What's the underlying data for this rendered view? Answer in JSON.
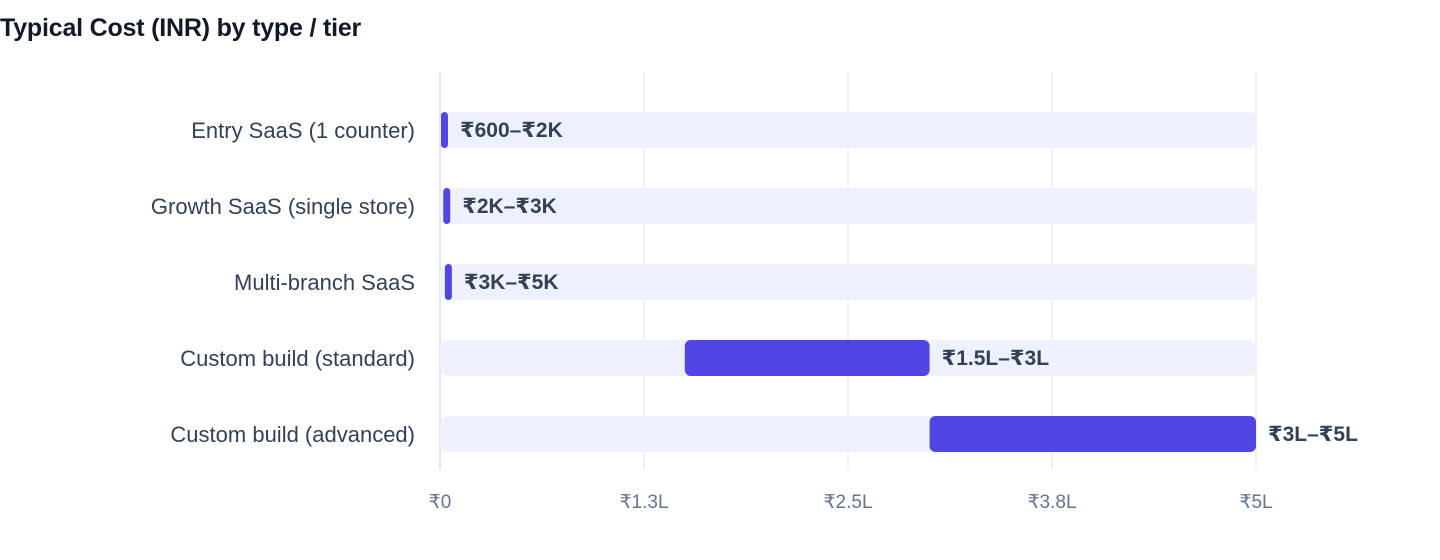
{
  "chart_data": {
    "type": "bar",
    "orientation": "horizontal",
    "title": "Typical Cost (INR) by type / tier",
    "xlabel": "",
    "ylabel": "",
    "xlim": [
      0,
      500000
    ],
    "x_ticks": [
      {
        "value": 0,
        "label": "₹0"
      },
      {
        "value": 125000,
        "label": "₹1.3L"
      },
      {
        "value": 250000,
        "label": "₹2.5L"
      },
      {
        "value": 375000,
        "label": "₹3.8L"
      },
      {
        "value": 500000,
        "label": "₹5L"
      }
    ],
    "grid": true,
    "categories": [
      "Entry SaaS (1 counter)",
      "Growth SaaS (single store)",
      "Multi-branch SaaS",
      "Custom build (standard)",
      "Custom build (advanced)"
    ],
    "ranges": [
      {
        "low": 600,
        "high": 2000,
        "label": "₹600–₹2K"
      },
      {
        "low": 2000,
        "high": 3000,
        "label": "₹2K–₹3K"
      },
      {
        "low": 3000,
        "high": 5000,
        "label": "₹3K–₹5K"
      },
      {
        "low": 150000,
        "high": 300000,
        "label": "₹1.5L–₹3L"
      },
      {
        "low": 300000,
        "high": 500000,
        "label": "₹3L–₹5L"
      }
    ],
    "colors": {
      "bar": "#4f46e5",
      "track": "#eef2ff",
      "grid": "#e5e7eb",
      "category_text": "#334155",
      "tick_text": "#64748b",
      "title_text": "#111827"
    }
  }
}
